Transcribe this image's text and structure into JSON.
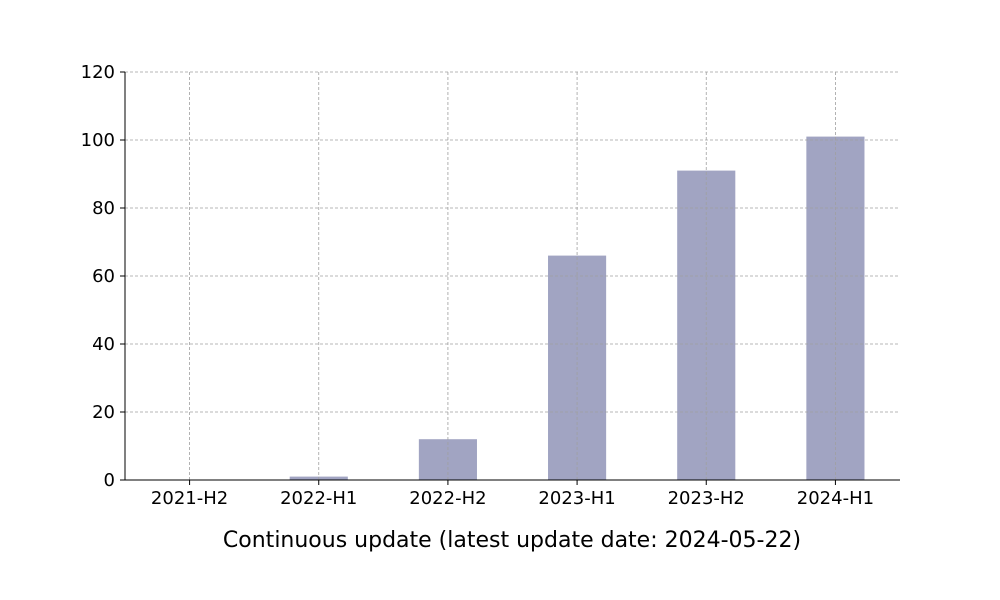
{
  "chart_data": {
    "type": "bar",
    "title": "",
    "xlabel": "Continuous update (latest update date: 2024-05-22)",
    "ylabel": "",
    "categories": [
      "2021-H2",
      "2022-H1",
      "2022-H2",
      "2023-H1",
      "2023-H2",
      "2024-H1"
    ],
    "values": [
      0,
      1,
      12,
      66,
      91,
      101
    ],
    "ylim": [
      0,
      120
    ],
    "yticks": [
      0,
      20,
      40,
      60,
      80,
      100,
      120
    ],
    "grid": true,
    "bar_color": "#a1a4c2"
  }
}
